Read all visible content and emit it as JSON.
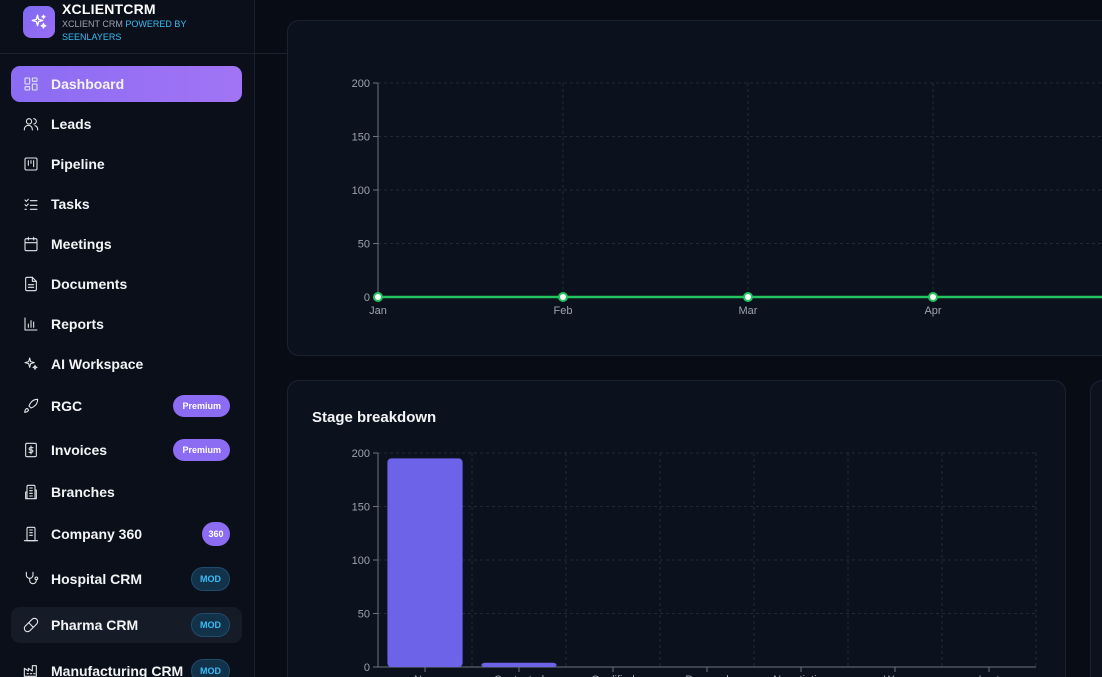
{
  "brand": {
    "name": "XCLIENTCRM",
    "sub_prefix": "XCLIENT CRM",
    "sub_highlight": "POWERED BY SEENLAYERS"
  },
  "nav": [
    {
      "label": "Dashboard",
      "icon": "grid-icon"
    },
    {
      "label": "Leads",
      "icon": "users-icon"
    },
    {
      "label": "Pipeline",
      "icon": "kanban-icon"
    },
    {
      "label": "Tasks",
      "icon": "checklist-icon"
    },
    {
      "label": "Meetings",
      "icon": "calendar-icon"
    },
    {
      "label": "Documents",
      "icon": "document-icon"
    },
    {
      "label": "Reports",
      "icon": "bar-chart-icon"
    },
    {
      "label": "AI Workspace",
      "icon": "sparkles-icon"
    },
    {
      "label": "RGC",
      "icon": "rocket-icon",
      "badge": "Premium"
    },
    {
      "label": "Invoices",
      "icon": "invoice-icon",
      "badge": "Premium"
    },
    {
      "label": "Branches",
      "icon": "building-icon"
    },
    {
      "label": "Company 360",
      "icon": "company-icon",
      "badge": "360"
    },
    {
      "label": "Hospital CRM",
      "icon": "stethoscope-icon",
      "badge": "MOD"
    },
    {
      "label": "Pharma CRM",
      "icon": "pill-icon",
      "badge": "MOD"
    },
    {
      "label": "Manufacturing CRM",
      "icon": "factory-icon",
      "badge": "MOD"
    }
  ],
  "colors": {
    "accent": "#8b6cf2",
    "line": "#22c55e",
    "bar": "#6c63e8",
    "mod": "#38bdf8"
  },
  "chart_data": [
    {
      "type": "line",
      "title": "",
      "x": [
        "Jan",
        "Feb",
        "Mar",
        "Apr"
      ],
      "series": [
        {
          "values": [
            0,
            0,
            0,
            0
          ]
        }
      ],
      "yticks": [
        0,
        50,
        100,
        150,
        200
      ],
      "ylim": [
        0,
        200
      ],
      "grid": true
    },
    {
      "type": "bar",
      "title": "Stage breakdown",
      "categories": [
        "New",
        "Contacted",
        "Qualified",
        "Proposal",
        "Negotiation",
        "Won",
        "Lost"
      ],
      "values": [
        195,
        4,
        0,
        0,
        0,
        0,
        0
      ],
      "yticks": [
        0,
        50,
        100,
        150,
        200
      ],
      "ylim": [
        0,
        200
      ],
      "grid": true
    }
  ]
}
